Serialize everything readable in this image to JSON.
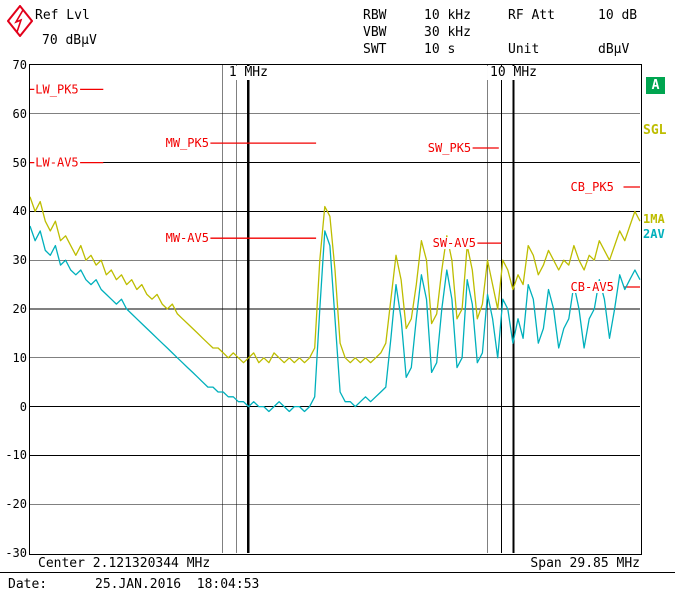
{
  "header": {
    "ref_lvl_label": "Ref Lvl",
    "ref_lvl_value": "70 dBµV",
    "rows": [
      {
        "label": "RBW",
        "value": "10 kHz"
      },
      {
        "label": "VBW",
        "value": "30 kHz"
      },
      {
        "label": "SWT",
        "value": "10 s"
      }
    ],
    "right_rows": [
      {
        "label": "RF Att",
        "value": "10 dB"
      },
      {
        "label": "Unit",
        "value": "dBµV"
      }
    ]
  },
  "side": {
    "screen_badge": "A",
    "sweep_mode": "SGL",
    "trace1_label": "1MA",
    "trace2_label": "2AV"
  },
  "footer": {
    "center": "Center 2.121320344 MHz",
    "span": "Span 29.85 MHz",
    "date_label": "Date:",
    "date_value": "25.JAN.2016  18:04:53"
  },
  "colors": {
    "trace1_yellow": "#bdbd00",
    "trace2_cyan": "#00b0bc",
    "limit_red": "#f20000",
    "logo_red": "#e2001a",
    "badge_green": "#00a550",
    "grid_black": "#000000"
  },
  "chart_data": {
    "type": "line",
    "x_scale": "log",
    "f_start_mhz": 0.15,
    "f_stop_mhz": 30,
    "db_top": 70,
    "db_bottom": -30,
    "ylabel": "dBµV",
    "xlabel": "Frequency",
    "y_ticks": [
      70,
      60,
      50,
      40,
      30,
      20,
      10,
      0,
      -10,
      -20,
      -30
    ],
    "x_ticks": [
      {
        "f": 1,
        "label": "1 MHz"
      },
      {
        "f": 10,
        "label": "10 MHz"
      }
    ],
    "x_gridlines_minor": [
      0.8,
      0.9,
      8,
      9
    ],
    "x_gridlines_major": [
      1,
      10
    ],
    "limit_lines": [
      {
        "name": "LW_PK5",
        "db": 65,
        "f1": 0.15,
        "f2": 0.2835,
        "label_f": 0.157
      },
      {
        "name": "LW-AV5",
        "db": 50,
        "f1": 0.15,
        "f2": 0.2835,
        "label_f": 0.157
      },
      {
        "name": "MW_PK5",
        "db": 54,
        "f1": 0.53,
        "f2": 1.8,
        "label_f": 0.487
      },
      {
        "name": "MW-AV5",
        "db": 34.5,
        "f1": 0.53,
        "f2": 1.8,
        "label_f": 0.487
      },
      {
        "name": "SW_PK5",
        "db": 53,
        "f1": 5.9,
        "f2": 8.8,
        "label_f": 4.75
      },
      {
        "name": "SW-AV5",
        "db": 33.5,
        "f1": 6.2,
        "f2": 9.0,
        "label_f": 4.95
      },
      {
        "name": "CB_PK5",
        "db": 45,
        "f1": 26.0,
        "f2": 30,
        "label_f": 16.4
      },
      {
        "name": "CB-AV5",
        "db": 24.5,
        "f1": 26.0,
        "f2": 30,
        "label_f": 16.4
      }
    ],
    "series": [
      {
        "name": "1MA-max-peak",
        "color_key": "trace1_yellow",
        "db": [
          43,
          40,
          42,
          38,
          36,
          38,
          34,
          35,
          33,
          31,
          33,
          30,
          31,
          29,
          30,
          27,
          28,
          26,
          27,
          25,
          26,
          24,
          25,
          23,
          22,
          23,
          21,
          20,
          21,
          19,
          18,
          17,
          16,
          15,
          14,
          13,
          12,
          12,
          11,
          10,
          11,
          10,
          9,
          10,
          11,
          9,
          10,
          9,
          11,
          10,
          9,
          10,
          9,
          10,
          9,
          10,
          12,
          30,
          41,
          39,
          28,
          13,
          10,
          9,
          10,
          9,
          10,
          9,
          10,
          11,
          13,
          22,
          31,
          26,
          16,
          18,
          25,
          34,
          30,
          17,
          19,
          28,
          35,
          30,
          18,
          20,
          33,
          28,
          18,
          21,
          30,
          25,
          20,
          30,
          28,
          24,
          27,
          25,
          33,
          31,
          27,
          29,
          32,
          30,
          28,
          30,
          29,
          33,
          30,
          28,
          31,
          30,
          34,
          32,
          30,
          33,
          36,
          34,
          37,
          40,
          38
        ]
      },
      {
        "name": "2AV-average",
        "color_key": "trace2_cyan",
        "db": [
          37,
          34,
          36,
          32,
          31,
          33,
          29,
          30,
          28,
          27,
          28,
          26,
          25,
          26,
          24,
          23,
          22,
          21,
          22,
          20,
          19,
          18,
          17,
          16,
          15,
          14,
          13,
          12,
          11,
          10,
          9,
          8,
          7,
          6,
          5,
          4,
          4,
          3,
          3,
          2,
          2,
          1,
          1,
          0,
          1,
          0,
          0,
          -1,
          0,
          1,
          0,
          -1,
          0,
          0,
          -1,
          0,
          2,
          20,
          36,
          33,
          18,
          3,
          1,
          1,
          0,
          1,
          2,
          1,
          2,
          3,
          4,
          14,
          25,
          18,
          6,
          8,
          18,
          27,
          22,
          7,
          9,
          20,
          28,
          22,
          8,
          10,
          26,
          21,
          9,
          11,
          23,
          18,
          10,
          22,
          20,
          13,
          18,
          14,
          25,
          22,
          13,
          16,
          24,
          20,
          12,
          16,
          18,
          25,
          20,
          12,
          18,
          20,
          26,
          22,
          14,
          20,
          27,
          24,
          26,
          28,
          26
        ]
      }
    ]
  }
}
